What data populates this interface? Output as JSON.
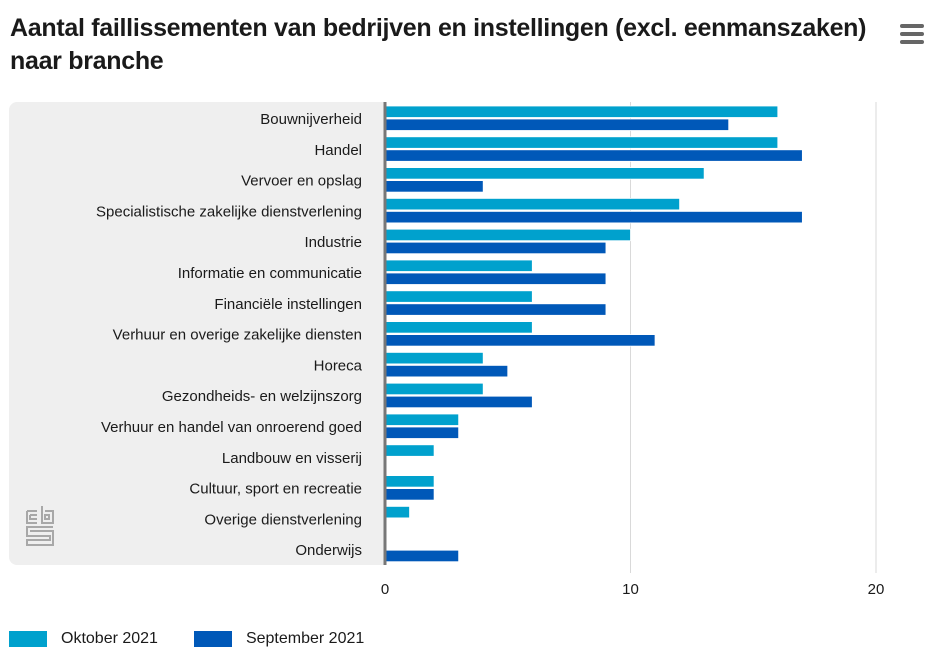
{
  "header": {
    "title": "Aantal faillissementen van bedrijven en instellingen (excl. eenmanszaken) naar branche",
    "menu_icon": "hamburger-menu-icon"
  },
  "branding": {
    "logo": "cbs-logo-icon"
  },
  "colors": {
    "oktober": "#00A1CD",
    "september": "#0058B8",
    "panel_bg": "#EFEFEF",
    "gridline": "#D9D9D9",
    "axis": "#777777"
  },
  "chart_data": {
    "type": "bar",
    "orientation": "horizontal",
    "title": "Aantal faillissementen van bedrijven en instellingen (excl. eenmanszaken) naar branche",
    "xlabel": "",
    "ylabel": "",
    "xlim": [
      0,
      21
    ],
    "xticks": [
      0,
      10,
      20
    ],
    "xtick_labels": [
      "0",
      "10",
      "20"
    ],
    "grid": true,
    "legend_position": "bottom-left",
    "categories": [
      "Bouwnijverheid",
      "Handel",
      "Vervoer en opslag",
      "Specialistische zakelijke dienstverlening",
      "Industrie",
      "Informatie en communicatie",
      "Financiële instellingen",
      "Verhuur en overige zakelijke diensten",
      "Horeca",
      "Gezondheids- en welzijnszorg",
      "Verhuur en handel van onroerend goed",
      "Landbouw en visserij",
      "Cultuur, sport en recreatie",
      "Overige dienstverlening",
      "Onderwijs"
    ],
    "series": [
      {
        "name": "Oktober 2021",
        "color": "#00A1CD",
        "values": [
          16,
          16,
          13,
          12,
          10,
          6,
          6,
          6,
          4,
          4,
          3,
          2,
          2,
          1,
          0
        ]
      },
      {
        "name": "September 2021",
        "color": "#0058B8",
        "values": [
          14,
          17,
          4,
          17,
          9,
          9,
          9,
          11,
          5,
          6,
          3,
          0,
          2,
          0,
          3
        ]
      }
    ]
  }
}
